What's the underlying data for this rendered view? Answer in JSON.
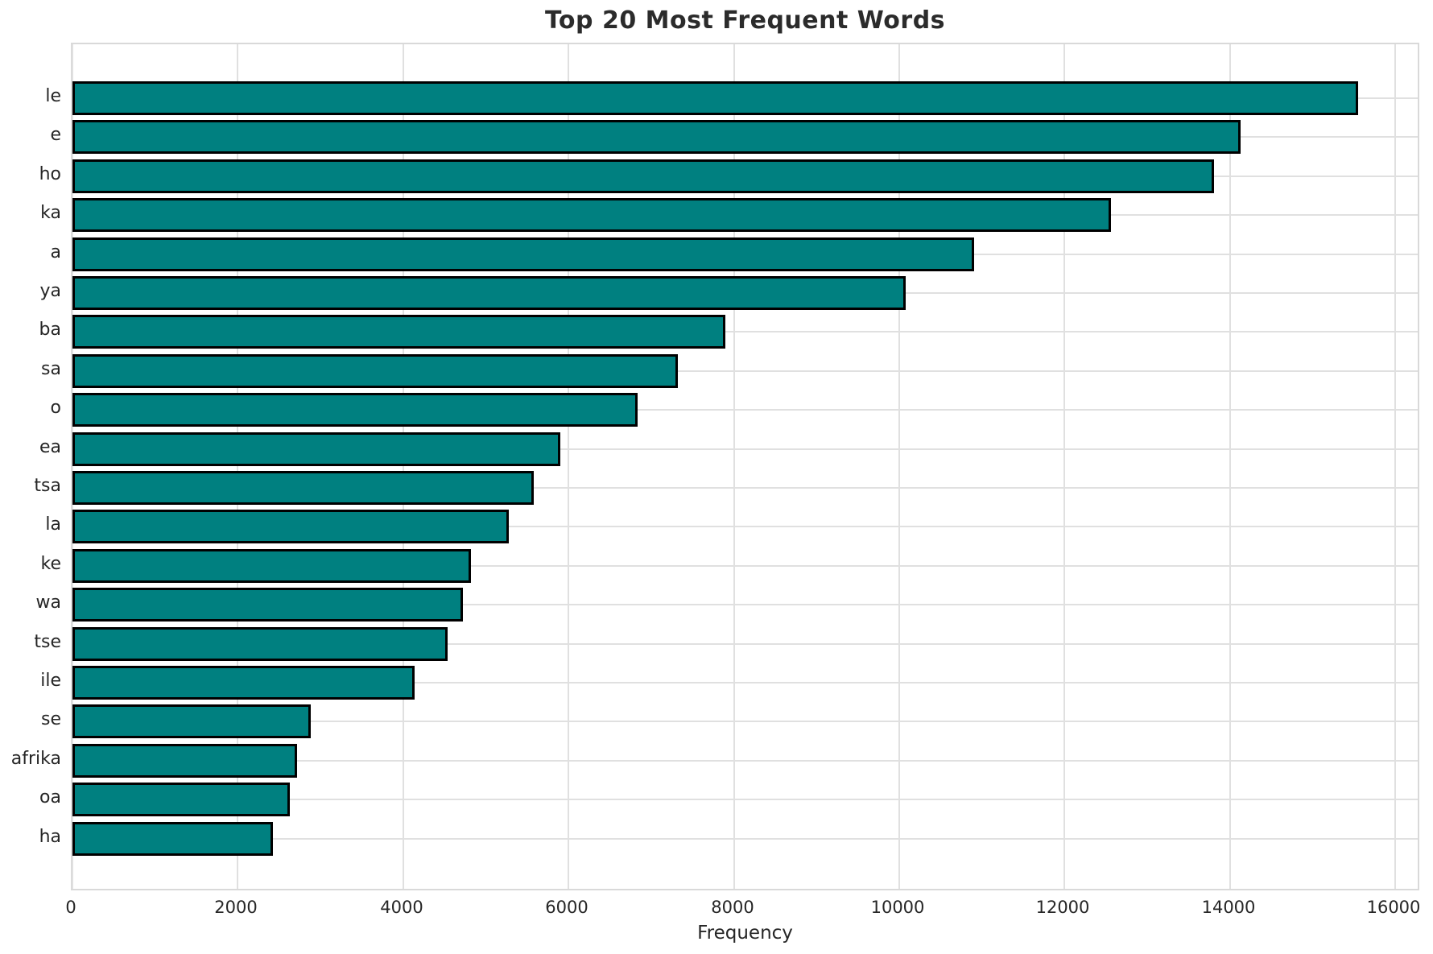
{
  "chart_data": {
    "type": "bar",
    "orientation": "horizontal",
    "title": "Top 20 Most Frequent Words",
    "xlabel": "Frequency",
    "ylabel": "",
    "categories": [
      "le",
      "e",
      "ho",
      "ka",
      "a",
      "ya",
      "ba",
      "sa",
      "o",
      "ea",
      "tsa",
      "la",
      "ke",
      "wa",
      "tse",
      "ile",
      "se",
      "afrika",
      "oa",
      "ha"
    ],
    "values": [
      15550,
      14130,
      13810,
      12560,
      10910,
      10080,
      7900,
      7320,
      6840,
      5900,
      5580,
      5280,
      4820,
      4720,
      4540,
      4140,
      2880,
      2720,
      2630,
      2420
    ],
    "xlim": [
      0,
      16310
    ],
    "xticks": [
      0,
      2000,
      4000,
      6000,
      8000,
      10000,
      12000,
      14000,
      16000
    ],
    "grid": true,
    "legend": "none",
    "bar_color": "#008080",
    "bar_edge_color": "#000000",
    "grid_color": "#e0e0e0",
    "spine_color": "#d9d9d9",
    "text_color": "#262626",
    "background_color": "#ffffff"
  }
}
